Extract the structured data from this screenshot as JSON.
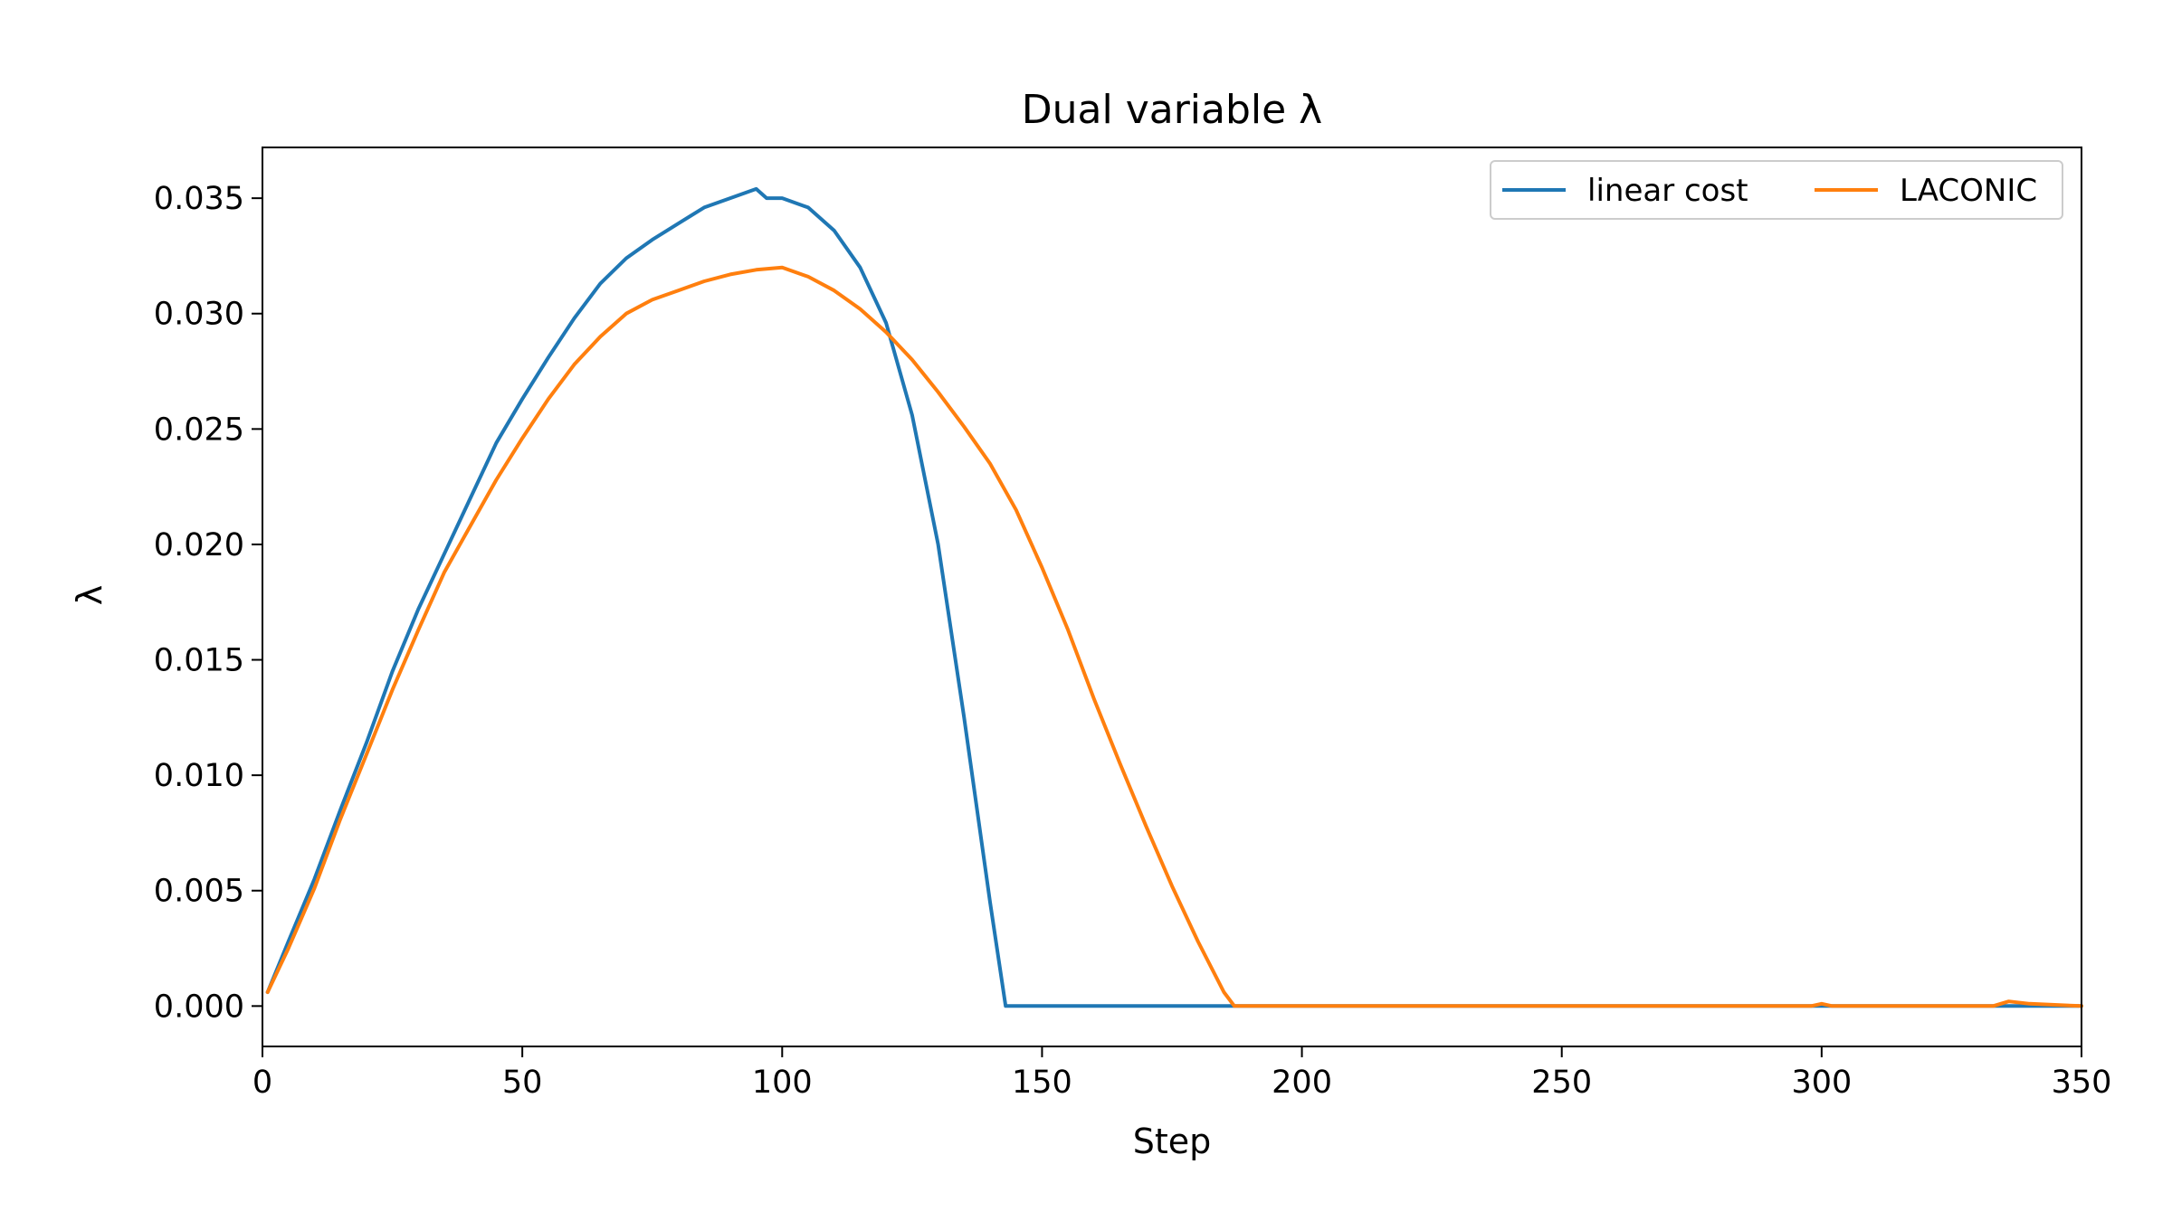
{
  "chart_data": {
    "type": "line",
    "title": "Dual variable λ",
    "xlabel": "Step",
    "ylabel": "λ",
    "xlim": [
      0,
      350
    ],
    "ylim": [
      -0.00175,
      0.0372
    ],
    "xticks": [
      0,
      50,
      100,
      150,
      200,
      250,
      300,
      350
    ],
    "xtick_labels": [
      "0",
      "50",
      "100",
      "150",
      "200",
      "250",
      "300",
      "350"
    ],
    "yticks": [
      0.0,
      0.005,
      0.01,
      0.015,
      0.02,
      0.025,
      0.03,
      0.035
    ],
    "ytick_labels": [
      "0.000",
      "0.005",
      "0.010",
      "0.015",
      "0.020",
      "0.025",
      "0.030",
      "0.035"
    ],
    "grid": false,
    "legend": {
      "placement": "top-right",
      "columns": 2
    },
    "series": [
      {
        "name": "linear cost",
        "color": "#1f77b4",
        "x": [
          1,
          5,
          10,
          15,
          20,
          25,
          30,
          35,
          40,
          45,
          50,
          55,
          60,
          65,
          70,
          75,
          80,
          85,
          90,
          95,
          97,
          100,
          105,
          110,
          115,
          120,
          125,
          130,
          135,
          140,
          143,
          150,
          200,
          250,
          300,
          335,
          350
        ],
        "y": [
          0.0006,
          0.0028,
          0.0055,
          0.0085,
          0.0114,
          0.0145,
          0.0172,
          0.0196,
          0.022,
          0.0244,
          0.0263,
          0.0281,
          0.0298,
          0.0313,
          0.0324,
          0.0332,
          0.0339,
          0.0346,
          0.035,
          0.0354,
          0.035,
          0.035,
          0.0346,
          0.0336,
          0.032,
          0.0296,
          0.0256,
          0.02,
          0.0125,
          0.0045,
          0.0,
          0.0,
          0.0,
          0.0,
          0.0,
          0.0,
          0.0
        ]
      },
      {
        "name": "LACONIC",
        "color": "#ff7f0e",
        "x": [
          1,
          5,
          10,
          15,
          20,
          25,
          30,
          35,
          40,
          45,
          50,
          55,
          60,
          65,
          70,
          75,
          80,
          85,
          90,
          95,
          100,
          105,
          110,
          115,
          120,
          125,
          130,
          135,
          140,
          145,
          150,
          155,
          160,
          165,
          170,
          175,
          180,
          185,
          187,
          200,
          250,
          298,
          300,
          302,
          333,
          336,
          340,
          350
        ],
        "y": [
          0.0006,
          0.0025,
          0.0051,
          0.0081,
          0.0109,
          0.0137,
          0.0163,
          0.0188,
          0.0208,
          0.0228,
          0.0246,
          0.0263,
          0.0278,
          0.029,
          0.03,
          0.0306,
          0.031,
          0.0314,
          0.0317,
          0.0319,
          0.032,
          0.0316,
          0.031,
          0.0302,
          0.0292,
          0.028,
          0.0266,
          0.0251,
          0.0235,
          0.0215,
          0.019,
          0.0163,
          0.0133,
          0.0105,
          0.0078,
          0.0052,
          0.0028,
          0.0006,
          0.0,
          0.0,
          0.0,
          0.0,
          0.0001,
          0.0,
          0.0,
          0.0002,
          0.0001,
          0.0
        ]
      }
    ]
  }
}
